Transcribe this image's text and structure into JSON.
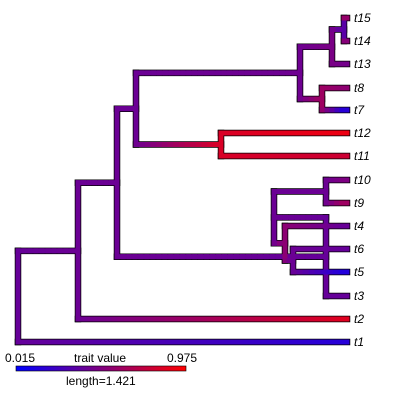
{
  "tree": {
    "tips": [
      "t15",
      "t14",
      "t13",
      "t8",
      "t7",
      "t12",
      "t11",
      "t10",
      "t9",
      "t4",
      "t6",
      "t5",
      "t3",
      "t2",
      "t1"
    ],
    "tip_values": [
      0.82,
      0.7,
      0.45,
      0.55,
      0.1,
      0.93,
      0.8,
      0.5,
      0.65,
      0.4,
      0.4,
      0.12,
      0.4,
      0.88,
      0.15
    ],
    "nodes": [
      {
        "id": "root",
        "value": 0.4
      },
      {
        "id": "n2",
        "value": 0.42
      },
      {
        "id": "n3",
        "value": 0.42
      },
      {
        "id": "A",
        "value": 0.42
      },
      {
        "id": "B",
        "value": 0.43
      },
      {
        "id": "C",
        "value": 0.48
      },
      {
        "id": "D",
        "value": 0.62
      },
      {
        "id": "E",
        "value": 0.4
      },
      {
        "id": "F",
        "value": 0.85
      },
      {
        "id": "G",
        "value": 0.42
      },
      {
        "id": "H",
        "value": 0.42
      },
      {
        "id": "I",
        "value": 0.55
      },
      {
        "id": "J",
        "value": 0.42
      },
      {
        "id": "K",
        "value": 0.35
      }
    ]
  },
  "legend": {
    "min_label": "0.015",
    "title": "trait value",
    "max_label": "0.975",
    "length_label": "length=1.421",
    "min": 0.015,
    "max": 0.975,
    "color_low": "#0000ff",
    "color_high": "#ff0000"
  }
}
